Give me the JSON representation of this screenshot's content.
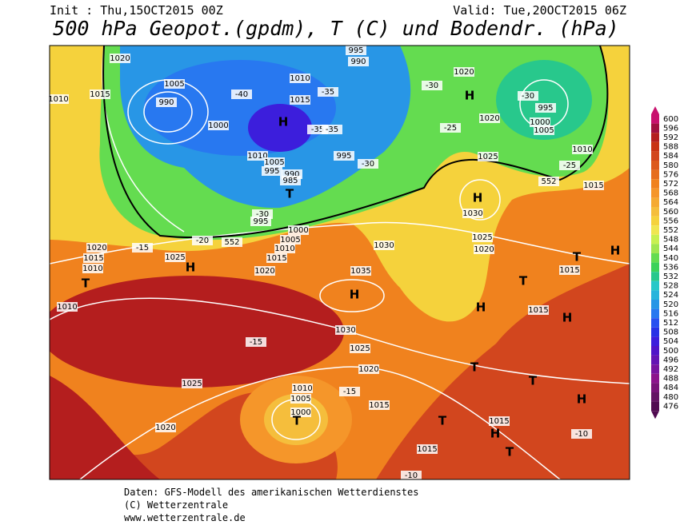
{
  "header": {
    "init": "Init : Thu,15OCT2015 00Z",
    "valid": "Valid: Tue,20OCT2015 06Z",
    "title": "500 hPa Geopot.(gpdm), T (C) und Bodendr. (hPa)"
  },
  "legend": {
    "ticks": [
      600,
      596,
      592,
      588,
      584,
      580,
      576,
      572,
      568,
      564,
      560,
      556,
      552,
      548,
      544,
      540,
      536,
      532,
      528,
      524,
      520,
      516,
      512,
      508,
      504,
      500,
      496,
      492,
      488,
      484,
      480,
      476
    ],
    "colors": [
      "#c8106e",
      "#a01040",
      "#b41e1e",
      "#c83214",
      "#d2461e",
      "#dc5a1e",
      "#e66e1e",
      "#f0821e",
      "#f5962a",
      "#f5aa32",
      "#f5be3c",
      "#f5d23c",
      "#f0e650",
      "#c8f050",
      "#a0e650",
      "#64dc50",
      "#3cd25a",
      "#28c88c",
      "#28c8c8",
      "#28b4dc",
      "#2896e6",
      "#2878f0",
      "#2850f0",
      "#2832e6",
      "#3c1edc",
      "#5014c8",
      "#6414b4",
      "#7814a0",
      "#8c148c",
      "#781478",
      "#641464",
      "#500a50"
    ]
  },
  "map": {
    "labels": [
      "1020",
      "1015",
      "1010",
      "1005",
      "990",
      "1000",
      "H",
      "1010",
      "1015",
      "-40",
      "-35",
      "-35",
      "-35",
      "995",
      "-30",
      "995",
      "990",
      "1020",
      "-30",
      "H",
      "-25",
      "1020",
      "-30",
      "995",
      "1000",
      "1005",
      "1010",
      "-25",
      "552",
      "1015",
      "1025",
      "H",
      "1030",
      "1025",
      "1020",
      "1010",
      "1005",
      "995",
      "990",
      "985",
      "T",
      "-30",
      "995",
      "1000",
      "1005",
      "1010",
      "1015",
      "1020",
      "552",
      "-20",
      "-15",
      "1020",
      "1015",
      "1010",
      "T",
      "1025",
      "H",
      "1010",
      "1035",
      "H",
      "1030",
      "1030",
      "1025",
      "1020",
      "-15",
      "1025",
      "1020",
      "1010",
      "1005",
      "1000",
      "T",
      "-15",
      "1015",
      "T",
      "T",
      "1015",
      "H",
      "T",
      "1015",
      "H",
      "T",
      "1015",
      "T",
      "H",
      "1015",
      "H",
      "T",
      "H",
      "-10",
      "-10"
    ]
  },
  "footer": {
    "lines": [
      "Daten: GFS-Modell des amerikanischen Wetterdienstes",
      "(C) Wetterzentrale",
      "www.wetterzentrale.de"
    ]
  }
}
